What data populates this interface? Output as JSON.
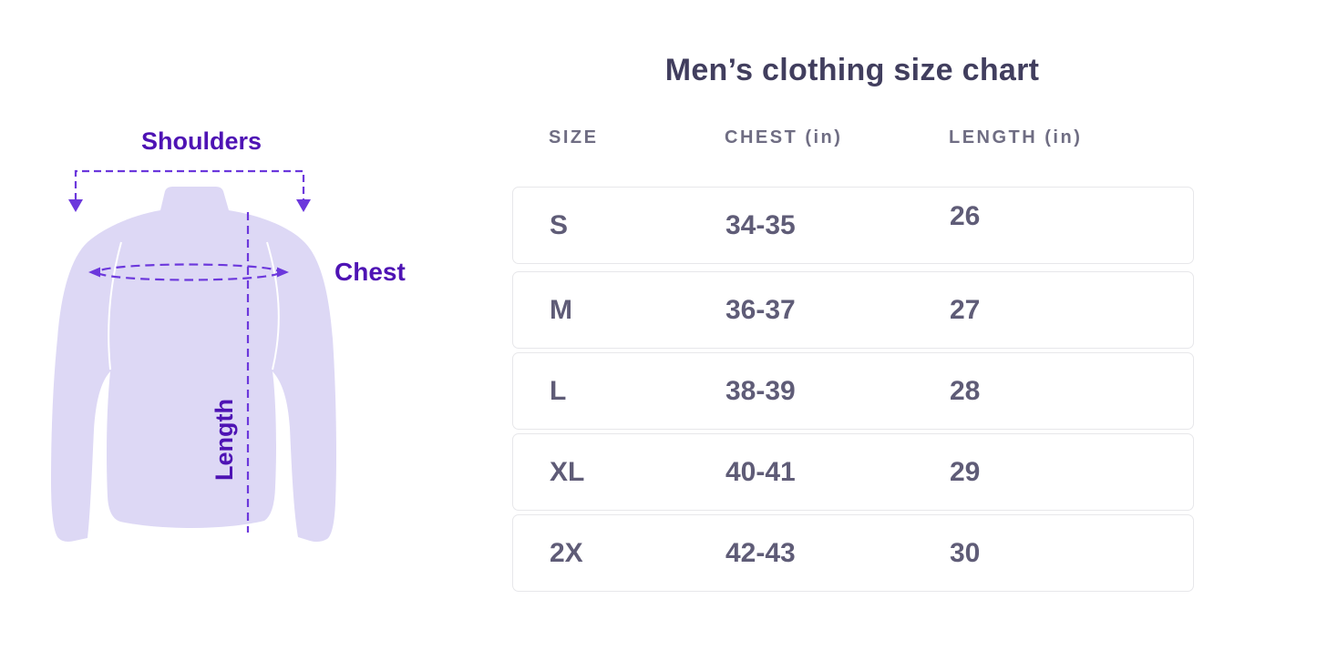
{
  "diagram": {
    "shoulders_label": "Shoulders",
    "chest_label": "Chest",
    "length_label": "Length",
    "colors": {
      "shirt_fill": "#DDD8F5",
      "label_text": "#4E13B4",
      "dashed_lines": "#6C38DC"
    }
  },
  "table": {
    "title": "Men’s clothing size chart",
    "headers": [
      "SIZE",
      "CHEST (in)",
      "LENGTH (in)"
    ],
    "rows": [
      {
        "size": "S",
        "chest": "34-35",
        "length": "26"
      },
      {
        "size": "M",
        "chest": "36-37",
        "length": "27"
      },
      {
        "size": "L",
        "chest": "38-39",
        "length": "28"
      },
      {
        "size": "XL",
        "chest": "40-41",
        "length": "29"
      },
      {
        "size": "2X",
        "chest": "42-43",
        "length": "30"
      }
    ],
    "colors": {
      "title_text": "#413E5E",
      "header_text": "#6F6D83",
      "cell_text": "#5F5C77",
      "row_border": "#E7E7EA"
    }
  }
}
